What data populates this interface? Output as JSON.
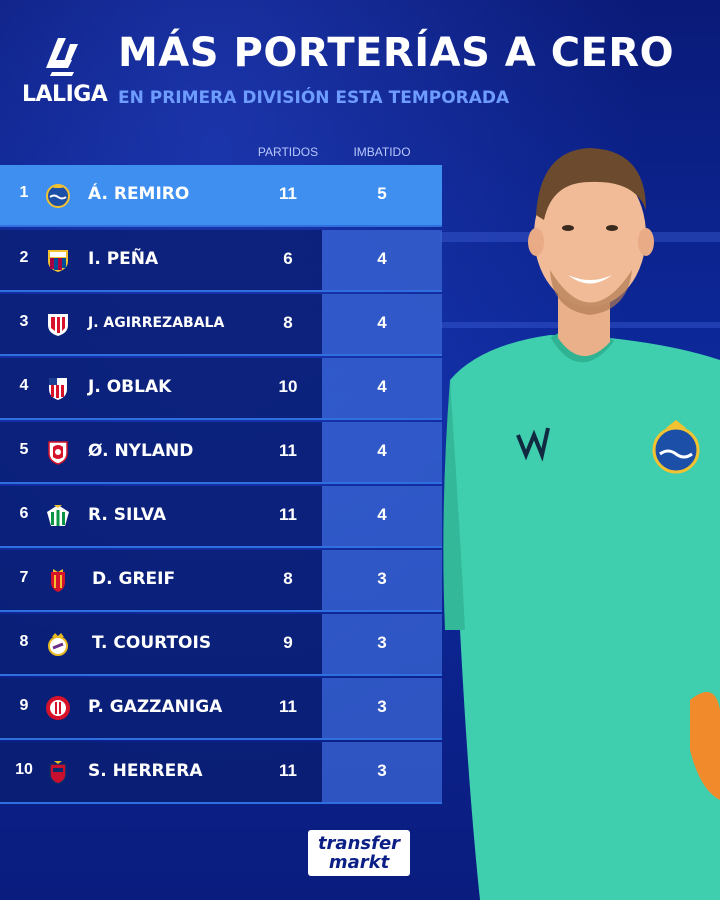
{
  "brand": {
    "league": "LALIGA",
    "source": "transfer markt",
    "source_top": "transfer",
    "source_bottom": "markt"
  },
  "header": {
    "title": "MÁS PORTERÍAS A CERO",
    "subtitle": "EN PRIMERA DIVISIÓN ESTA TEMPORADA"
  },
  "columns": {
    "matches": "PARTIDOS",
    "clean_sheets": "IMBATIDO"
  },
  "colors": {
    "background": "#0b1f86",
    "highlight": "#3f8ff0",
    "accent": "#6e9cff",
    "jersey": "#3fcfae"
  },
  "rows": [
    {
      "rank": "1",
      "name": "Á. REMIRO",
      "matches": "11",
      "clean_sheets": "5",
      "crest": "real-sociedad-crest-icon"
    },
    {
      "rank": "2",
      "name": "I. PEÑA",
      "matches": "6",
      "clean_sheets": "4",
      "crest": "barcelona-crest-icon"
    },
    {
      "rank": "3",
      "name": "J. AGIRREZABALA",
      "matches": "8",
      "clean_sheets": "4",
      "crest": "athletic-crest-icon"
    },
    {
      "rank": "4",
      "name": "J. OBLAK",
      "matches": "10",
      "clean_sheets": "4",
      "crest": "atletico-crest-icon"
    },
    {
      "rank": "5",
      "name": "Ø. NYLAND",
      "matches": "11",
      "clean_sheets": "4",
      "crest": "sevilla-crest-icon"
    },
    {
      "rank": "6",
      "name": "R. SILVA",
      "matches": "11",
      "clean_sheets": "4",
      "crest": "betis-crest-icon"
    },
    {
      "rank": "7",
      "name": "D. GREIF",
      "matches": "8",
      "clean_sheets": "3",
      "crest": "mallorca-crest-icon"
    },
    {
      "rank": "8",
      "name": "T. COURTOIS",
      "matches": "9",
      "clean_sheets": "3",
      "crest": "real-madrid-crest-icon"
    },
    {
      "rank": "9",
      "name": "P. GAZZANIGA",
      "matches": "11",
      "clean_sheets": "3",
      "crest": "girona-crest-icon"
    },
    {
      "rank": "10",
      "name": "S. HERRERA",
      "matches": "11",
      "clean_sheets": "3",
      "crest": "osasuna-crest-icon"
    }
  ]
}
